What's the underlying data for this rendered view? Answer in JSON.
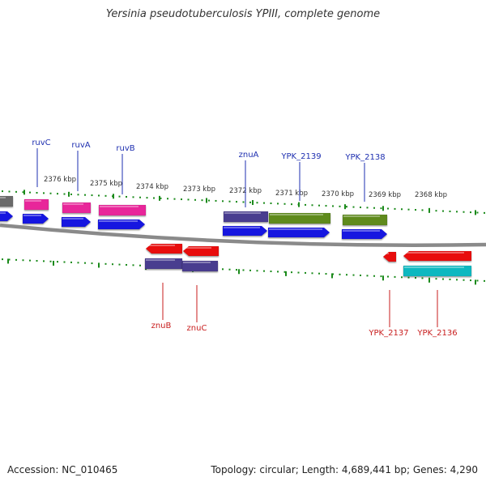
{
  "title": "Yersinia pseudotuberculosis YPIII, complete genome",
  "footer": {
    "accession": "Accession: NC_010465",
    "summary": "Topology: circular; Length: 4,689,441 bp; Genes: 4,290"
  },
  "colors": {
    "backbone": "#8a8a8a",
    "tick": "#1a8a1a",
    "gene_top_label": "#1e2fb0",
    "gene_bottom_label": "#c81e1e",
    "pink": "#e8289a",
    "blue": "#1414e0",
    "purple": "#4a3d8f",
    "olive": "#5e8a1e",
    "red": "#e81010",
    "cyan": "#10b8c0",
    "gray": "#6a6a6a"
  },
  "ruler": {
    "labels": [
      "2376 kbp",
      "2375 kbp",
      "2374 kbp",
      "2373 kbp",
      "2372 kbp",
      "2371 kbp",
      "2370 kbp",
      "2369 kbp",
      "2368 kbp"
    ]
  },
  "genes": {
    "top": [
      {
        "name": "ruvC"
      },
      {
        "name": "ruvA"
      },
      {
        "name": "ruvB"
      },
      {
        "name": "znuA"
      },
      {
        "name": "YPK_2139"
      },
      {
        "name": "YPK_2138"
      }
    ],
    "bottom": [
      {
        "name": "znuB"
      },
      {
        "name": "znuC"
      },
      {
        "name": "YPK_2137"
      },
      {
        "name": "YPK_2136"
      }
    ]
  }
}
